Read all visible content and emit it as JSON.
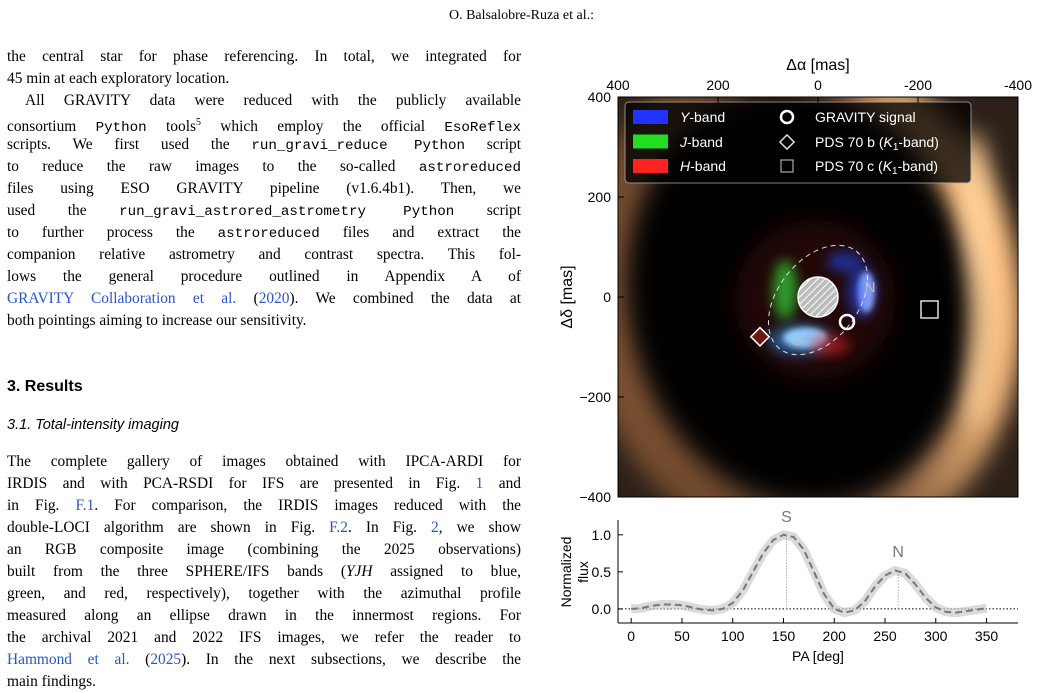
{
  "header": {
    "running_title": "O. Balsalobre-Ruza et al.:"
  },
  "blocks": [
    {
      "type": "paragraph",
      "indent": false,
      "lines": [
        "the central star for phase referencing. In total, we integrated for",
        "45 min at each exploratory location."
      ]
    },
    {
      "type": "paragraph",
      "indent": true,
      "lines": [
        "All GRAVITY data were reduced with the publicly available",
        [
          "consortium ",
          {
            "text": "Python",
            "style": "mono"
          },
          " tools",
          {
            "text": "5",
            "style": "sup"
          },
          " which employ the official ",
          {
            "text": "EsoReflex",
            "style": "mono"
          }
        ],
        [
          "scripts. We first used the ",
          {
            "text": "run_gravi_reduce Python",
            "style": "mono"
          },
          " script"
        ],
        [
          "to reduce the raw images to the so-called ",
          {
            "text": "astroreduced",
            "style": "mono"
          }
        ],
        "files using ESO GRAVITY pipeline (v1.6.4b1). Then, we",
        [
          "used the ",
          {
            "text": "run_gravi_astrored_astrometry Python",
            "style": "mono"
          },
          " script"
        ],
        [
          "to further process the ",
          {
            "text": "astroreduced",
            "style": "mono"
          },
          " files and extract the"
        ],
        "companion relative astrometry and contrast spectra. This fol-",
        "lows the general procedure outlined in Appendix A of",
        [
          {
            "text": "GRAVITY Collaboration et al.",
            "style": "link"
          },
          " (",
          {
            "text": "2020",
            "style": "link"
          },
          "). We combined the data at"
        ],
        "both pointings aiming to increase our sensitivity."
      ]
    },
    {
      "type": "section_heading",
      "text": "3. Results"
    },
    {
      "type": "subsection_heading",
      "text": "3.1. Total-intensity imaging"
    },
    {
      "type": "paragraph",
      "indent": false,
      "lines": [
        "The complete gallery of images obtained with IPCA-ARDI for",
        [
          "IRDIS and with PCA-RSDI for IFS are presented in Fig. ",
          {
            "text": "1",
            "style": "link"
          },
          " and"
        ],
        [
          "in Fig. ",
          {
            "text": "F.1",
            "style": "link"
          },
          ". For comparison, the IRDIS images reduced with the"
        ],
        [
          "double-LOCI algorithm are shown in Fig. ",
          {
            "text": "F.2",
            "style": "link"
          },
          ". In Fig. ",
          {
            "text": "2",
            "style": "link"
          },
          ", we show"
        ],
        "an RGB composite image (combining the 2025 observations)",
        [
          "built from the three SPHERE/IFS bands (",
          {
            "text": "YJH",
            "style": "italic"
          },
          " assigned to blue,"
        ],
        "green, and red, respectively), together with the azimuthal profile",
        "measured along an ellipse drawn in the innermost regions. For",
        "the archival 2021 and 2022 IFS images, we refer the reader to",
        [
          {
            "text": "Hammond et al.",
            "style": "link"
          },
          " (",
          {
            "text": "2025",
            "style": "link"
          },
          "). In the next subsections, we describe the"
        ],
        "main findings."
      ]
    }
  ],
  "figure": {
    "image_panel": {
      "x_label": "Δα [mas]",
      "y_label": "Δδ [mas]",
      "xlim": [
        400,
        -400
      ],
      "ylim": [
        -400,
        400
      ],
      "xticks": [
        400,
        200,
        0,
        -200,
        -400
      ],
      "yticks": [
        400,
        200,
        0,
        {
          "value": -200,
          "label": "−200"
        },
        {
          "value": -400,
          "label": "−400"
        }
      ],
      "band_legend": [
        {
          "label": [
            {
              "text": "Y",
              "style": "italic"
            },
            "-band"
          ],
          "color": "#2233ff"
        },
        {
          "label": [
            {
              "text": "J",
              "style": "italic"
            },
            "-band"
          ],
          "color": "#22dd22"
        },
        {
          "label": [
            {
              "text": "H",
              "style": "italic"
            },
            "-band"
          ],
          "color": "#ff2222"
        }
      ],
      "marker_legend": [
        {
          "label": [
            "GRAVITY signal"
          ]
        },
        {
          "label": [
            "PDS 70 b (",
            {
              "text": "K",
              "style": "italic"
            },
            {
              "text": "1",
              "style": "sub"
            },
            "-band)"
          ]
        },
        {
          "label": [
            "PDS 70 c (",
            {
              "text": "K",
              "style": "italic"
            },
            {
              "text": "1",
              "style": "sub"
            },
            "-band)"
          ]
        }
      ],
      "annotations": [
        "N",
        "S"
      ]
    },
    "profile_panel": {
      "type": "line",
      "x_label": "PA [deg]",
      "y_label_lines": [
        "Normalized",
        "flux"
      ],
      "xlim": [
        -13,
        381
      ],
      "ylim": [
        -0.19,
        1.2
      ],
      "xticks": [
        0,
        50,
        100,
        150,
        200,
        250,
        300,
        350
      ],
      "yticks": [
        {
          "value": 0,
          "label": "0.0"
        },
        {
          "value": 0.5,
          "label": "0.5"
        },
        {
          "value": 1,
          "label": "1.0"
        }
      ],
      "x": [
        0,
        10,
        20,
        30,
        40,
        50,
        60,
        70,
        80,
        90,
        100,
        110,
        120,
        130,
        140,
        150,
        160,
        170,
        180,
        190,
        200,
        210,
        220,
        230,
        240,
        250,
        260,
        270,
        280,
        290,
        300,
        310,
        320,
        330,
        340,
        350
      ],
      "values": [
        0.0,
        0.01,
        0.04,
        0.06,
        0.06,
        0.05,
        0.02,
        -0.01,
        -0.02,
        0.0,
        0.08,
        0.25,
        0.5,
        0.75,
        0.93,
        1.0,
        0.97,
        0.8,
        0.5,
        0.2,
        0.0,
        -0.05,
        -0.02,
        0.1,
        0.3,
        0.45,
        0.52,
        0.48,
        0.33,
        0.15,
        0.02,
        -0.04,
        -0.05,
        -0.03,
        -0.01,
        0.01
      ],
      "color": "#777777",
      "peaks": [
        {
          "label": "S",
          "pa": 153,
          "flux": 1.0
        },
        {
          "label": "N",
          "pa": 263,
          "flux": 0.52
        }
      ]
    }
  }
}
